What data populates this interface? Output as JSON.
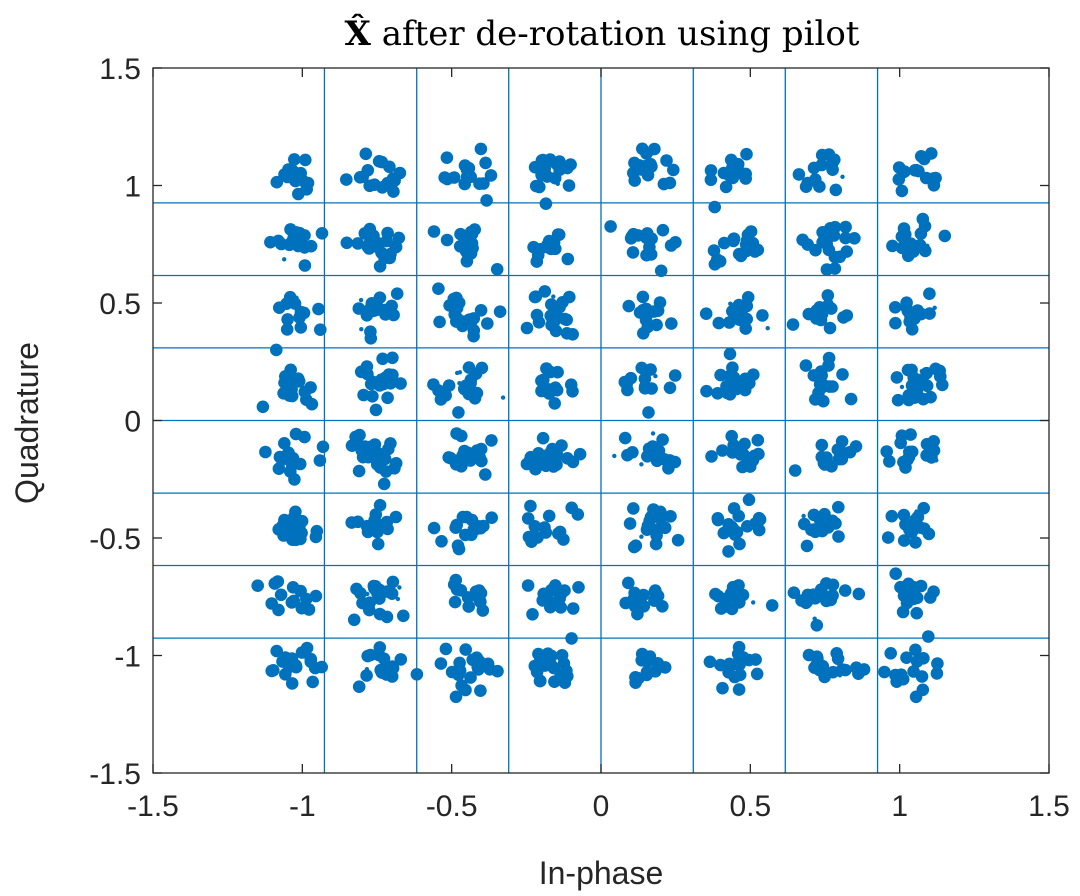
{
  "chart_data": {
    "type": "scatter",
    "title": "X̂ after de-rotation using pilot",
    "title_symbol": "X̂",
    "title_rest": " after de-rotation using pilot",
    "xlabel": "In-phase",
    "ylabel": "Quadrature",
    "xlim": [
      -1.5,
      1.5
    ],
    "ylim": [
      -1.5,
      1.5
    ],
    "xticks": [
      -1.5,
      -1,
      -0.5,
      0,
      0.5,
      1,
      1.5
    ],
    "xtick_labels": [
      "-1.5",
      "-1",
      "-0.5",
      "0",
      "0.5",
      "1",
      "1.5"
    ],
    "yticks": [
      -1.5,
      -1,
      -0.5,
      0,
      0.5,
      1,
      1.5
    ],
    "ytick_labels": [
      "-1.5",
      "-1",
      "-0.5",
      "0",
      "0.5",
      "1",
      "1.5"
    ],
    "decision_boundaries_x": [
      -0.926,
      -0.617,
      -0.309,
      0,
      0.309,
      0.617,
      0.926
    ],
    "decision_boundaries_y": [
      -0.926,
      -0.617,
      -0.309,
      0,
      0.309,
      0.617,
      0.926
    ],
    "constellation": "64-QAM",
    "cluster_centers_i": [
      -1.03,
      -0.75,
      -0.45,
      -0.17,
      0.15,
      0.45,
      0.75,
      1.05
    ],
    "cluster_centers_q": [
      1.05,
      0.75,
      0.45,
      0.15,
      -0.15,
      -0.45,
      -0.75,
      -1.05
    ],
    "marker_color": "#0072BD",
    "grid_color": "#0072BD",
    "grid": false
  }
}
